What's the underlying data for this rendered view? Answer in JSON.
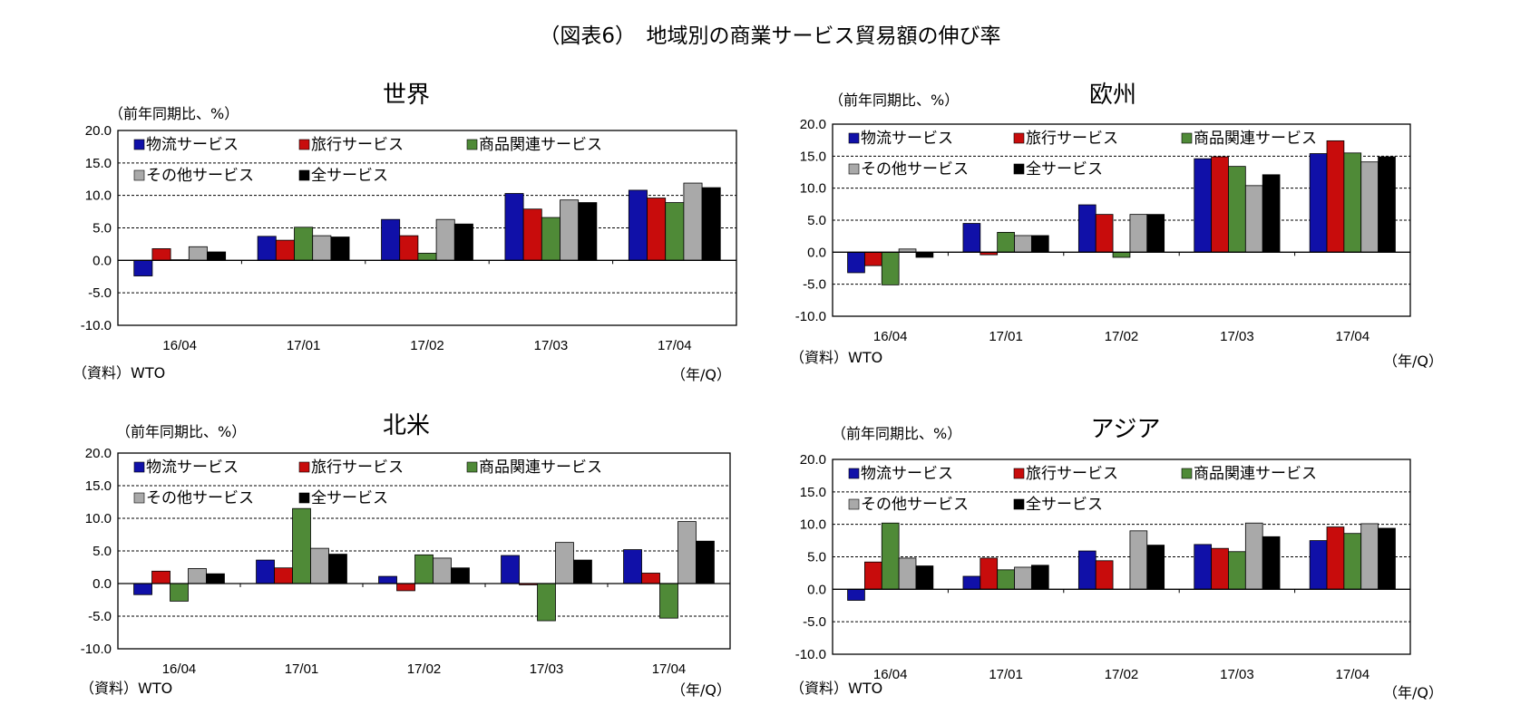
{
  "title": "（図表6）　地域別の商業サービス貿易額の伸び率",
  "colors": {
    "物流サービス": "#1010a8",
    "旅行サービス": "#c80c0c",
    "商品関連サービス": "#4f8a37",
    "その他サービス": "#a9a9a9",
    "全サービス": "#000000"
  },
  "chart_data": [
    {
      "type": "bar",
      "title": "世界",
      "ylabel": "（前年同期比、%）",
      "xlabel": "（年/Q）",
      "source": "（資料）WTO",
      "categories": [
        "16/04",
        "17/01",
        "17/02",
        "17/03",
        "17/04"
      ],
      "ylim": [
        -10,
        20
      ],
      "yticks": [
        "20.0",
        "15.0",
        "10.0",
        "5.0",
        "0.0",
        "-5.0",
        "-10.0"
      ],
      "legend_position": "top-left",
      "series": [
        {
          "name": "物流サービス",
          "values": [
            -2.4,
            3.7,
            6.3,
            10.3,
            10.8
          ]
        },
        {
          "name": "旅行サービス",
          "values": [
            1.8,
            3.1,
            3.8,
            7.9,
            9.6
          ]
        },
        {
          "name": "商品関連サービス",
          "values": [
            0.1,
            5.1,
            1.1,
            6.6,
            8.9
          ]
        },
        {
          "name": "その他サービス",
          "values": [
            2.1,
            3.8,
            6.3,
            9.3,
            11.9
          ]
        },
        {
          "name": "全サービス",
          "values": [
            1.3,
            3.6,
            5.6,
            8.9,
            11.2
          ]
        }
      ]
    },
    {
      "type": "bar",
      "title": "欧州",
      "ylabel": "（前年同期比、%）",
      "xlabel": "（年/Q）",
      "source": "（資料）WTO",
      "categories": [
        "16/04",
        "17/01",
        "17/02",
        "17/03",
        "17/04"
      ],
      "ylim": [
        -10,
        20
      ],
      "yticks": [
        "20.0",
        "15.0",
        "10.0",
        "5.0",
        "0.0",
        "-5.0",
        "-10.0"
      ],
      "legend_position": "top-left",
      "series": [
        {
          "name": "物流サービス",
          "values": [
            -3.2,
            4.5,
            7.4,
            14.6,
            15.4
          ]
        },
        {
          "name": "旅行サービス",
          "values": [
            -2.1,
            -0.4,
            5.9,
            14.9,
            17.4
          ]
        },
        {
          "name": "商品関連サービス",
          "values": [
            -5.1,
            3.1,
            -0.8,
            13.4,
            15.5
          ]
        },
        {
          "name": "その他サービス",
          "values": [
            0.5,
            2.6,
            5.9,
            10.4,
            14.1
          ]
        },
        {
          "name": "全サービス",
          "values": [
            -0.8,
            2.6,
            5.9,
            12.1,
            14.9
          ]
        }
      ]
    },
    {
      "type": "bar",
      "title": "北米",
      "ylabel": "（前年同期比、%）",
      "xlabel": "（年/Q）",
      "source": "（資料）WTO",
      "categories": [
        "16/04",
        "17/01",
        "17/02",
        "17/03",
        "17/04"
      ],
      "ylim": [
        -10,
        20
      ],
      "yticks": [
        "20.0",
        "15.0",
        "10.0",
        "5.0",
        "0.0",
        "-5.0",
        "-10.0"
      ],
      "legend_position": "top-left",
      "series": [
        {
          "name": "物流サービス",
          "values": [
            -1.7,
            3.6,
            1.1,
            4.3,
            5.2
          ]
        },
        {
          "name": "旅行サービス",
          "values": [
            1.9,
            2.4,
            -1.1,
            -0.2,
            1.6
          ]
        },
        {
          "name": "商品関連サービス",
          "values": [
            -2.7,
            11.5,
            4.4,
            -5.7,
            -5.3
          ]
        },
        {
          "name": "その他サービス",
          "values": [
            2.3,
            5.4,
            3.9,
            6.3,
            9.5
          ]
        },
        {
          "name": "全サービス",
          "values": [
            1.5,
            4.5,
            2.4,
            3.6,
            6.5
          ]
        }
      ]
    },
    {
      "type": "bar",
      "title": "アジア",
      "ylabel": "（前年同期比、%）",
      "xlabel": "（年/Q）",
      "source": "（資料）WTO",
      "categories": [
        "16/04",
        "17/01",
        "17/02",
        "17/03",
        "17/04"
      ],
      "ylim": [
        -10,
        20
      ],
      "yticks": [
        "20.0",
        "15.0",
        "10.0",
        "5.0",
        "0.0",
        "-5.0",
        "-10.0"
      ],
      "legend_position": "top-left",
      "series": [
        {
          "name": "物流サービス",
          "values": [
            -1.7,
            2.0,
            5.9,
            6.9,
            7.5
          ]
        },
        {
          "name": "旅行サービス",
          "values": [
            4.2,
            4.8,
            4.4,
            6.3,
            9.6
          ]
        },
        {
          "name": "商品関連サービス",
          "values": [
            10.2,
            3.0,
            0.0,
            5.8,
            8.6
          ]
        },
        {
          "name": "その他サービス",
          "values": [
            4.8,
            3.4,
            9.0,
            10.2,
            10.1
          ]
        },
        {
          "name": "全サービス",
          "values": [
            3.6,
            3.7,
            6.8,
            8.1,
            9.4
          ]
        }
      ]
    }
  ]
}
